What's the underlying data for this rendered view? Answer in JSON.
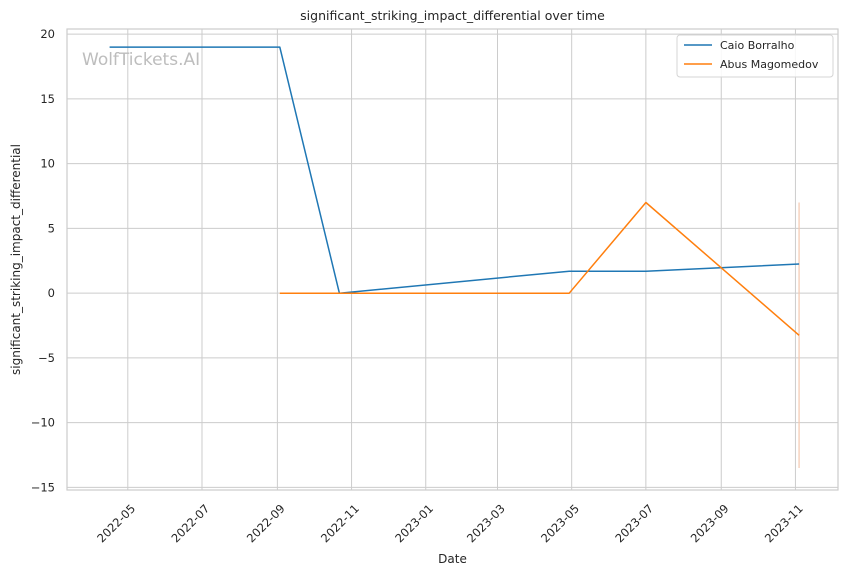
{
  "chart_data": {
    "type": "line",
    "title": "significant_striking_impact_differential over time",
    "xlabel": "Date",
    "ylabel": "significant_striking_impact_differential",
    "watermark": "WolfTickets.AI",
    "x_tick_labels": [
      "2022-05",
      "2022-07",
      "2022-09",
      "2022-11",
      "2023-01",
      "2023-03",
      "2023-05",
      "2023-07",
      "2023-09",
      "2023-11"
    ],
    "y_ticks": [
      -15,
      -10,
      -5,
      0,
      5,
      10,
      15,
      20
    ],
    "y_tick_labels": [
      "−15",
      "−10",
      "−5",
      "0",
      "5",
      "10",
      "15",
      "20"
    ],
    "ylim": [
      -15.2,
      20.4
    ],
    "xlim": [
      "2022-03-12",
      "2023-12-06"
    ],
    "grid": true,
    "legend_position": "top-right",
    "series": [
      {
        "name": "Caio Borralho",
        "color": "#1f77b4",
        "x": [
          "2022-04-16",
          "2022-09-03",
          "2022-10-22",
          "2023-04-29",
          "2023-07-01",
          "2023-11-04"
        ],
        "y": [
          19.0,
          19.0,
          0.0,
          1.7,
          1.7,
          2.25
        ]
      },
      {
        "name": "Abus Magomedov",
        "color": "#ff7f0e",
        "x": [
          "2022-09-03",
          "2022-10-22",
          "2023-04-29",
          "2023-07-01",
          "2023-11-04"
        ],
        "y": [
          0.0,
          0.0,
          0.0,
          7.0,
          -3.25
        ]
      }
    ],
    "range_band": {
      "x": "2023-11-04",
      "y_range": [
        -13.5,
        7.0
      ],
      "color": "#f4c9b0"
    }
  }
}
